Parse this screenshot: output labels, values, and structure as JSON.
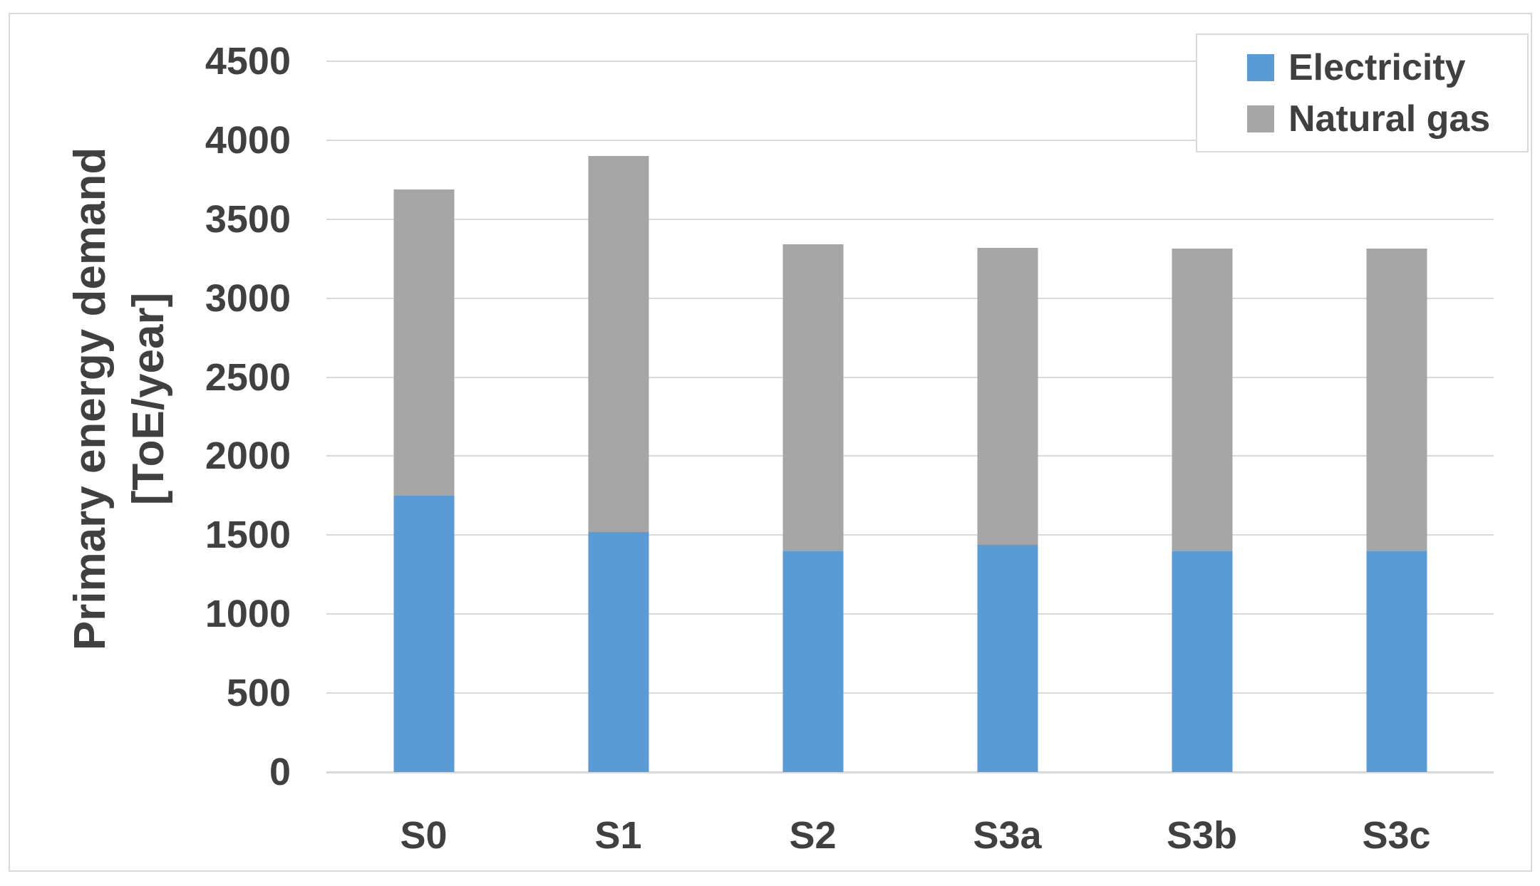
{
  "page": {
    "background": "#FFFFFF"
  },
  "chart": {
    "border_color": "#D9D9D9",
    "grid_color": "#D9D9D9",
    "text_color": "#404040",
    "y_axis": {
      "title_line1": "Primary energy demand",
      "title_line2": "[ToE/year]",
      "min": 0,
      "max": 4500,
      "tick_step": 500,
      "ticks": [
        0,
        500,
        1000,
        1500,
        2000,
        2500,
        3000,
        3500,
        4000,
        4500
      ]
    }
  },
  "chart_data": {
    "type": "bar",
    "stacked": true,
    "title": "",
    "xlabel": "",
    "ylabel": "Primary energy demand [ToE/year]",
    "ylim": [
      0,
      4500
    ],
    "grid": true,
    "legend_position": "top-right",
    "categories": [
      "S0",
      "S1",
      "S2",
      "S3a",
      "S3b",
      "S3c"
    ],
    "series": [
      {
        "name": "Electricity",
        "color": "#5B9BD5",
        "values": [
          1750,
          1520,
          1400,
          1440,
          1400,
          1400
        ]
      },
      {
        "name": "Natural gas",
        "color": "#A6A6A6",
        "values": [
          1940,
          2380,
          1940,
          1880,
          1915,
          1915
        ]
      }
    ],
    "totals": [
      3690,
      3900,
      3340,
      3320,
      3315,
      3315
    ]
  }
}
